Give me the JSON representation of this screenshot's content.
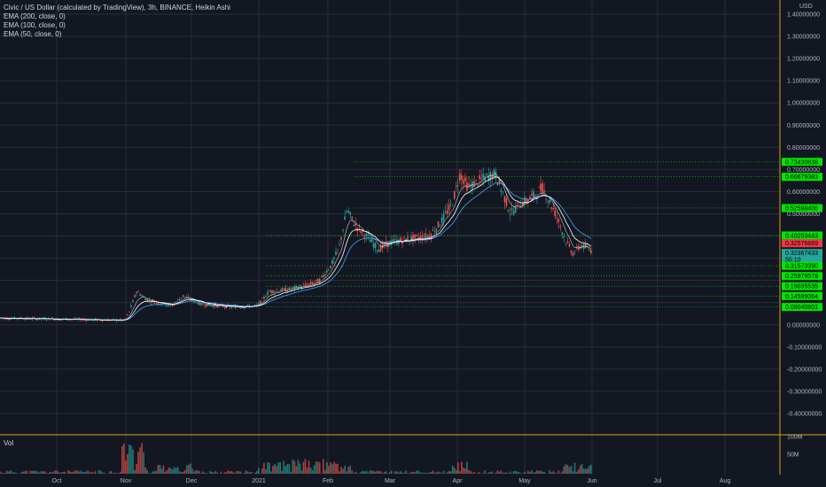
{
  "legend": {
    "title": "Civic / US Dollar (calculated by TradingView), 3h, BINANCE, Heikin Ashi",
    "indicators": [
      "EMA (200, close, 0)",
      "EMA (100, close, 0)",
      "EMA (50, close, 0)"
    ]
  },
  "volume_label": "Vol",
  "currency": "USD",
  "price_axis": {
    "min": -0.4,
    "max": 1.4,
    "labels": [
      {
        "v": 1.4,
        "t": "1.40000000"
      },
      {
        "v": 1.3,
        "t": "1.30000000"
      },
      {
        "v": 1.2,
        "t": "1.20000000"
      },
      {
        "v": 1.1,
        "t": "1.10000000"
      },
      {
        "v": 1.0,
        "t": "1.00000000"
      },
      {
        "v": 0.9,
        "t": "0.90000000"
      },
      {
        "v": 0.8,
        "t": "0.80000000"
      },
      {
        "v": 0.7,
        "t": "0.70000000"
      },
      {
        "v": 0.6,
        "t": "0.60000000"
      },
      {
        "v": 0.5,
        "t": "0.50000000"
      },
      {
        "v": 0.0,
        "t": "0.00000000"
      },
      {
        "v": -0.1,
        "t": "-0.10000000"
      },
      {
        "v": -0.2,
        "t": "-0.20000000"
      },
      {
        "v": -0.3,
        "t": "-0.30000000"
      },
      {
        "v": -0.4,
        "t": "-0.40000000"
      }
    ]
  },
  "price_tags": [
    {
      "v": 0.7343,
      "t": "0.73430838",
      "color": "#00e600"
    },
    {
      "v": 0.6668,
      "t": "0.66679383",
      "color": "#00e600"
    },
    {
      "v": 0.526,
      "t": "0.52598408",
      "color": "#00e600"
    },
    {
      "v": 0.4025,
      "t": "0.40253443",
      "color": "#00e600"
    },
    {
      "v": 0.3675,
      "t": "0.32576669",
      "color": "#f23645"
    },
    {
      "v": 0.3236,
      "t": "0.32367433",
      "color": "#26a69a"
    },
    {
      "v": 0.294,
      "t": "55:10",
      "color": "#26a69a"
    },
    {
      "v": 0.2657,
      "t": "0.31573390",
      "color": "#00e600"
    },
    {
      "v": 0.2198,
      "t": "0.25979578",
      "color": "#00e600"
    },
    {
      "v": 0.1738,
      "t": "0.19035535",
      "color": "#00e600"
    },
    {
      "v": 0.1296,
      "t": "0.14599064",
      "color": "#00e600"
    },
    {
      "v": 0.0804,
      "t": "0.08040801",
      "color": "#00e600"
    }
  ],
  "time_axis": [
    "Oct",
    "Nov",
    "Dec",
    "2021",
    "Feb",
    "Mar",
    "Apr",
    "May",
    "Jun",
    "Jul",
    "Aug"
  ],
  "volume_axis": [
    {
      "v": 100,
      "t": "100M"
    },
    {
      "v": 50,
      "t": "50M"
    }
  ],
  "colors": {
    "background": "#131722",
    "grid": "#2a2e39",
    "up": "#26a69a",
    "down": "#ef5350",
    "ema200": "#42a5f5",
    "ema100": "#ffffff",
    "ema50": "#ffffff",
    "levels": "#00e600",
    "separator": "#d4a017"
  },
  "chart_data": {
    "type": "candlestick",
    "price_path": [
      [
        0.0,
        0.03
      ],
      [
        0.16,
        0.02
      ],
      [
        0.165,
        0.05
      ],
      [
        0.175,
        0.15
      ],
      [
        0.19,
        0.11
      ],
      [
        0.22,
        0.085
      ],
      [
        0.235,
        0.13
      ],
      [
        0.26,
        0.09
      ],
      [
        0.3,
        0.08
      ],
      [
        0.33,
        0.085
      ],
      [
        0.345,
        0.15
      ],
      [
        0.37,
        0.16
      ],
      [
        0.395,
        0.18
      ],
      [
        0.41,
        0.2
      ],
      [
        0.425,
        0.27
      ],
      [
        0.435,
        0.35
      ],
      [
        0.445,
        0.52
      ],
      [
        0.455,
        0.45
      ],
      [
        0.47,
        0.4
      ],
      [
        0.485,
        0.34
      ],
      [
        0.5,
        0.37
      ],
      [
        0.53,
        0.39
      ],
      [
        0.55,
        0.4
      ],
      [
        0.565,
        0.46
      ],
      [
        0.58,
        0.55
      ],
      [
        0.59,
        0.68
      ],
      [
        0.6,
        0.62
      ],
      [
        0.62,
        0.66
      ],
      [
        0.635,
        0.68
      ],
      [
        0.645,
        0.59
      ],
      [
        0.655,
        0.5
      ],
      [
        0.665,
        0.54
      ],
      [
        0.68,
        0.57
      ],
      [
        0.69,
        0.6
      ],
      [
        0.695,
        0.62
      ],
      [
        0.705,
        0.55
      ],
      [
        0.715,
        0.48
      ],
      [
        0.725,
        0.38
      ],
      [
        0.735,
        0.32
      ],
      [
        0.745,
        0.36
      ],
      [
        0.76,
        0.33
      ]
    ]
  }
}
